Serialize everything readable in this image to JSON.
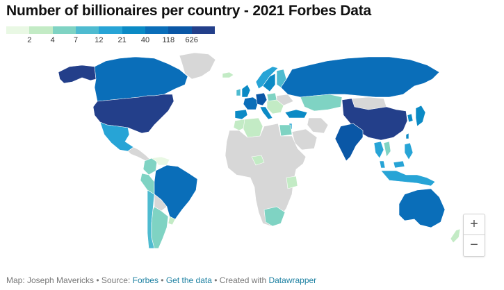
{
  "title": "Number of billionaires per country - 2021 Forbes Data",
  "legend": {
    "colors": [
      "#e9f8e4",
      "#c3ebc5",
      "#7fd3c3",
      "#4ebbd0",
      "#27a4d6",
      "#0b8ac5",
      "#0a6eb9",
      "#0a57a6",
      "#233f8a"
    ],
    "ticks": [
      "2",
      "4",
      "7",
      "12",
      "21",
      "40",
      "118",
      "626"
    ]
  },
  "map": {
    "no_data_color": "#d7d7d7",
    "countries": [
      {
        "name": "Alaska",
        "bin": 8
      },
      {
        "name": "Canada",
        "bin": 6
      },
      {
        "name": "United States",
        "bin": 8
      },
      {
        "name": "Mexico",
        "bin": 4
      },
      {
        "name": "Greenland",
        "bin": -1
      },
      {
        "name": "Iceland",
        "bin": 1
      },
      {
        "name": "Colombia",
        "bin": 2
      },
      {
        "name": "Venezuela",
        "bin": 0
      },
      {
        "name": "Peru",
        "bin": 2
      },
      {
        "name": "Brazil",
        "bin": 6
      },
      {
        "name": "Chile",
        "bin": 3
      },
      {
        "name": "Argentina",
        "bin": 2
      },
      {
        "name": "Uruguay",
        "bin": 1
      },
      {
        "name": "Bolivia",
        "bin": -1
      },
      {
        "name": "Norway",
        "bin": 4
      },
      {
        "name": "Sweden",
        "bin": 5
      },
      {
        "name": "Finland",
        "bin": 3
      },
      {
        "name": "United Kingdom",
        "bin": 5
      },
      {
        "name": "Ireland",
        "bin": 3
      },
      {
        "name": "France",
        "bin": 6
      },
      {
        "name": "Germany",
        "bin": 7
      },
      {
        "name": "Spain",
        "bin": 5
      },
      {
        "name": "Italy",
        "bin": 5
      },
      {
        "name": "Poland",
        "bin": 2
      },
      {
        "name": "Eastern Europe",
        "bin": 1
      },
      {
        "name": "Ukraine",
        "bin": -1
      },
      {
        "name": "Turkey",
        "bin": 5
      },
      {
        "name": "Russia",
        "bin": 6
      },
      {
        "name": "Kazakhstan",
        "bin": 2
      },
      {
        "name": "Mongolia",
        "bin": -1
      },
      {
        "name": "China",
        "bin": 8
      },
      {
        "name": "Japan",
        "bin": 5
      },
      {
        "name": "South Korea",
        "bin": 5
      },
      {
        "name": "Taiwan",
        "bin": 5
      },
      {
        "name": "India",
        "bin": 7
      },
      {
        "name": "Iran",
        "bin": -1
      },
      {
        "name": "Saudi Arabia",
        "bin": -1
      },
      {
        "name": "Israel",
        "bin": 4
      },
      {
        "name": "Egypt",
        "bin": 2
      },
      {
        "name": "Algeria",
        "bin": 1
      },
      {
        "name": "Morocco",
        "bin": 1
      },
      {
        "name": "Nigeria",
        "bin": 1
      },
      {
        "name": "Africa",
        "bin": -1
      },
      {
        "name": "Tanzania",
        "bin": 1
      },
      {
        "name": "South Africa",
        "bin": 2
      },
      {
        "name": "Thailand",
        "bin": 4
      },
      {
        "name": "Vietnam",
        "bin": 2
      },
      {
        "name": "Malaysia",
        "bin": 4
      },
      {
        "name": "Philippines",
        "bin": 4
      },
      {
        "name": "Indonesia",
        "bin": 4
      },
      {
        "name": "Australia",
        "bin": 6
      },
      {
        "name": "New Zealand",
        "bin": 1
      }
    ]
  },
  "zoom": {
    "in": "+",
    "out": "−"
  },
  "footer": {
    "prefix": "Map: Joseph Mavericks • Source: ",
    "source": "Forbes",
    "sep1": " • ",
    "get_data": "Get the data",
    "sep2": " • Created with ",
    "tool": "Datawrapper"
  }
}
